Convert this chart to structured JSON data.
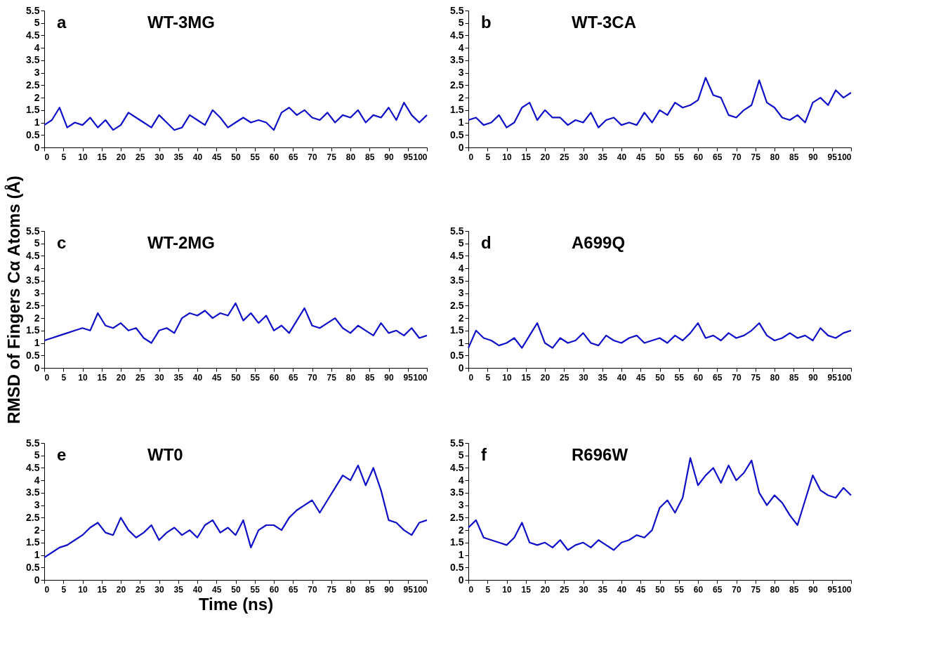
{
  "chart_data": [
    {
      "type": "line",
      "title": "WT-3MG",
      "annotations": [
        "a"
      ],
      "xlim": [
        0,
        100
      ],
      "ylim": [
        0,
        5.5
      ],
      "xticks": [
        0,
        5,
        10,
        15,
        20,
        25,
        30,
        35,
        40,
        45,
        50,
        55,
        60,
        65,
        70,
        75,
        80,
        85,
        90,
        95,
        100
      ],
      "yticks": [
        0,
        0.5,
        1,
        1.5,
        2,
        2.5,
        3,
        3.5,
        4,
        4.5,
        5,
        5.5
      ],
      "grid": false,
      "x": [
        0,
        2,
        4,
        6,
        8,
        10,
        12,
        14,
        16,
        18,
        20,
        22,
        24,
        26,
        28,
        30,
        32,
        34,
        36,
        38,
        40,
        42,
        44,
        46,
        48,
        50,
        52,
        54,
        56,
        58,
        60,
        62,
        64,
        66,
        68,
        70,
        72,
        74,
        76,
        78,
        80,
        82,
        84,
        86,
        88,
        90,
        92,
        94,
        96,
        98,
        100
      ],
      "series": [
        {
          "color": "#0f0fc8",
          "values": [
            0.9,
            1.1,
            1.6,
            0.8,
            1.0,
            0.9,
            1.2,
            0.8,
            1.1,
            0.7,
            0.9,
            1.4,
            1.2,
            1.0,
            0.8,
            1.3,
            1.0,
            0.7,
            0.8,
            1.3,
            1.1,
            0.9,
            1.5,
            1.2,
            0.8,
            1.0,
            1.2,
            1.0,
            1.1,
            1.0,
            0.7,
            1.4,
            1.6,
            1.3,
            1.5,
            1.2,
            1.1,
            1.4,
            1.0,
            1.3,
            1.2,
            1.5,
            1.0,
            1.3,
            1.2,
            1.6,
            1.1,
            1.8,
            1.3,
            1.0,
            1.3
          ]
        }
      ]
    },
    {
      "type": "line",
      "title": "WT-3CA",
      "annotations": [
        "b"
      ],
      "xlim": [
        0,
        100
      ],
      "ylim": [
        0,
        5.5
      ],
      "xticks": [
        0,
        5,
        10,
        15,
        20,
        25,
        30,
        35,
        40,
        45,
        50,
        55,
        60,
        65,
        70,
        75,
        80,
        85,
        90,
        95,
        100
      ],
      "yticks": [
        0,
        0.5,
        1,
        1.5,
        2,
        2.5,
        3,
        3.5,
        4,
        4.5,
        5,
        5.5
      ],
      "grid": false,
      "x": [
        0,
        2,
        4,
        6,
        8,
        10,
        12,
        14,
        16,
        18,
        20,
        22,
        24,
        26,
        28,
        30,
        32,
        34,
        36,
        38,
        40,
        42,
        44,
        46,
        48,
        50,
        52,
        54,
        56,
        58,
        60,
        62,
        64,
        66,
        68,
        70,
        72,
        74,
        76,
        78,
        80,
        82,
        84,
        86,
        88,
        90,
        92,
        94,
        96,
        98,
        100
      ],
      "series": [
        {
          "color": "#0f0fc8",
          "values": [
            1.1,
            1.2,
            0.9,
            1.0,
            1.3,
            0.8,
            1.0,
            1.6,
            1.8,
            1.1,
            1.5,
            1.2,
            1.2,
            0.9,
            1.1,
            1.0,
            1.4,
            0.8,
            1.1,
            1.2,
            0.9,
            1.0,
            0.9,
            1.4,
            1.0,
            1.5,
            1.3,
            1.8,
            1.6,
            1.7,
            1.9,
            2.8,
            2.1,
            2.0,
            1.3,
            1.2,
            1.5,
            1.7,
            2.7,
            1.8,
            1.6,
            1.2,
            1.1,
            1.3,
            1.0,
            1.8,
            2.0,
            1.7,
            2.3,
            2.0,
            2.2
          ]
        }
      ]
    },
    {
      "type": "line",
      "title": "WT-2MG",
      "annotations": [
        "c"
      ],
      "ylabel": "RMSD of Fingers Cα Atoms (Å)",
      "xlim": [
        0,
        100
      ],
      "ylim": [
        0,
        5.5
      ],
      "xticks": [
        0,
        5,
        10,
        15,
        20,
        25,
        30,
        35,
        40,
        45,
        50,
        55,
        60,
        65,
        70,
        75,
        80,
        85,
        90,
        95,
        100
      ],
      "yticks": [
        0,
        0.5,
        1,
        1.5,
        2,
        2.5,
        3,
        3.5,
        4,
        4.5,
        5,
        5.5
      ],
      "grid": false,
      "x": [
        0,
        2,
        4,
        6,
        8,
        10,
        12,
        14,
        16,
        18,
        20,
        22,
        24,
        26,
        28,
        30,
        32,
        34,
        36,
        38,
        40,
        42,
        44,
        46,
        48,
        50,
        52,
        54,
        56,
        58,
        60,
        62,
        64,
        66,
        68,
        70,
        72,
        74,
        76,
        78,
        80,
        82,
        84,
        86,
        88,
        90,
        92,
        94,
        96,
        98,
        100
      ],
      "series": [
        {
          "color": "#0f0fc8",
          "values": [
            1.1,
            1.2,
            1.3,
            1.4,
            1.5,
            1.6,
            1.5,
            2.2,
            1.7,
            1.6,
            1.8,
            1.5,
            1.6,
            1.2,
            1.0,
            1.5,
            1.6,
            1.4,
            2.0,
            2.2,
            2.1,
            2.3,
            2.0,
            2.2,
            2.1,
            2.6,
            1.9,
            2.2,
            1.8,
            2.1,
            1.5,
            1.7,
            1.4,
            1.9,
            2.4,
            1.7,
            1.6,
            1.8,
            2.0,
            1.6,
            1.4,
            1.7,
            1.5,
            1.3,
            1.8,
            1.4,
            1.5,
            1.3,
            1.6,
            1.2,
            1.3
          ]
        }
      ]
    },
    {
      "type": "line",
      "title": "A699Q",
      "annotations": [
        "d"
      ],
      "xlim": [
        0,
        100
      ],
      "ylim": [
        0,
        5.5
      ],
      "xticks": [
        0,
        5,
        10,
        15,
        20,
        25,
        30,
        35,
        40,
        45,
        50,
        55,
        60,
        65,
        70,
        75,
        80,
        85,
        90,
        95,
        100
      ],
      "yticks": [
        0,
        0.5,
        1,
        1.5,
        2,
        2.5,
        3,
        3.5,
        4,
        4.5,
        5,
        5.5
      ],
      "grid": false,
      "x": [
        0,
        2,
        4,
        6,
        8,
        10,
        12,
        14,
        16,
        18,
        20,
        22,
        24,
        26,
        28,
        30,
        32,
        34,
        36,
        38,
        40,
        42,
        44,
        46,
        48,
        50,
        52,
        54,
        56,
        58,
        60,
        62,
        64,
        66,
        68,
        70,
        72,
        74,
        76,
        78,
        80,
        82,
        84,
        86,
        88,
        90,
        92,
        94,
        96,
        98,
        100
      ],
      "series": [
        {
          "color": "#0f0fc8",
          "values": [
            0.8,
            1.5,
            1.2,
            1.1,
            0.9,
            1.0,
            1.2,
            0.8,
            1.3,
            1.8,
            1.0,
            0.8,
            1.2,
            1.0,
            1.1,
            1.4,
            1.0,
            0.9,
            1.3,
            1.1,
            1.0,
            1.2,
            1.3,
            1.0,
            1.1,
            1.2,
            1.0,
            1.3,
            1.1,
            1.4,
            1.8,
            1.2,
            1.3,
            1.1,
            1.4,
            1.2,
            1.3,
            1.5,
            1.8,
            1.3,
            1.1,
            1.2,
            1.4,
            1.2,
            1.3,
            1.1,
            1.6,
            1.3,
            1.2,
            1.4,
            1.5
          ]
        }
      ]
    },
    {
      "type": "line",
      "title": "WT0",
      "annotations": [
        "e"
      ],
      "xlabel": "Time (ns)",
      "xlim": [
        0,
        100
      ],
      "ylim": [
        0,
        5.5
      ],
      "xticks": [
        0,
        5,
        10,
        15,
        20,
        25,
        30,
        35,
        40,
        45,
        50,
        55,
        60,
        65,
        70,
        75,
        80,
        85,
        90,
        95,
        100
      ],
      "yticks": [
        0,
        0.5,
        1,
        1.5,
        2,
        2.5,
        3,
        3.5,
        4,
        4.5,
        5,
        5.5
      ],
      "grid": false,
      "x": [
        0,
        2,
        4,
        6,
        8,
        10,
        12,
        14,
        16,
        18,
        20,
        22,
        24,
        26,
        28,
        30,
        32,
        34,
        36,
        38,
        40,
        42,
        44,
        46,
        48,
        50,
        52,
        54,
        56,
        58,
        60,
        62,
        64,
        66,
        68,
        70,
        72,
        74,
        76,
        78,
        80,
        82,
        84,
        86,
        88,
        90,
        92,
        94,
        96,
        98,
        100
      ],
      "series": [
        {
          "color": "#0f0fc8",
          "values": [
            0.9,
            1.1,
            1.3,
            1.4,
            1.6,
            1.8,
            2.1,
            2.3,
            1.9,
            1.8,
            2.5,
            2.0,
            1.7,
            1.9,
            2.2,
            1.6,
            1.9,
            2.1,
            1.8,
            2.0,
            1.7,
            2.2,
            2.4,
            1.9,
            2.1,
            1.8,
            2.4,
            1.3,
            2.0,
            2.2,
            2.2,
            2.0,
            2.5,
            2.8,
            3.0,
            3.2,
            2.7,
            3.2,
            3.7,
            4.2,
            4.0,
            4.6,
            3.8,
            4.5,
            3.6,
            2.4,
            2.3,
            2.0,
            1.8,
            2.3,
            2.4
          ]
        }
      ]
    },
    {
      "type": "line",
      "title": "R696W",
      "annotations": [
        "f"
      ],
      "xlim": [
        0,
        100
      ],
      "ylim": [
        0,
        5.5
      ],
      "xticks": [
        0,
        5,
        10,
        15,
        20,
        25,
        30,
        35,
        40,
        45,
        50,
        55,
        60,
        65,
        70,
        75,
        80,
        85,
        90,
        95,
        100
      ],
      "yticks": [
        0,
        0.5,
        1,
        1.5,
        2,
        2.5,
        3,
        3.5,
        4,
        4.5,
        5,
        5.5
      ],
      "grid": false,
      "x": [
        0,
        2,
        4,
        6,
        8,
        10,
        12,
        14,
        16,
        18,
        20,
        22,
        24,
        26,
        28,
        30,
        32,
        34,
        36,
        38,
        40,
        42,
        44,
        46,
        48,
        50,
        52,
        54,
        56,
        58,
        60,
        62,
        64,
        66,
        68,
        70,
        72,
        74,
        76,
        78,
        80,
        82,
        84,
        86,
        88,
        90,
        92,
        94,
        96,
        98,
        100
      ],
      "series": [
        {
          "color": "#0f0fc8",
          "values": [
            2.1,
            2.4,
            1.7,
            1.6,
            1.5,
            1.4,
            1.7,
            2.3,
            1.5,
            1.4,
            1.5,
            1.3,
            1.6,
            1.2,
            1.4,
            1.5,
            1.3,
            1.6,
            1.4,
            1.2,
            1.5,
            1.6,
            1.8,
            1.7,
            2.0,
            2.9,
            3.2,
            2.7,
            3.3,
            4.9,
            3.8,
            4.2,
            4.5,
            3.9,
            4.6,
            4.0,
            4.3,
            4.8,
            3.5,
            3.0,
            3.4,
            3.1,
            2.6,
            2.2,
            3.2,
            4.2,
            3.6,
            3.4,
            3.3,
            3.7,
            3.4
          ]
        }
      ]
    }
  ]
}
